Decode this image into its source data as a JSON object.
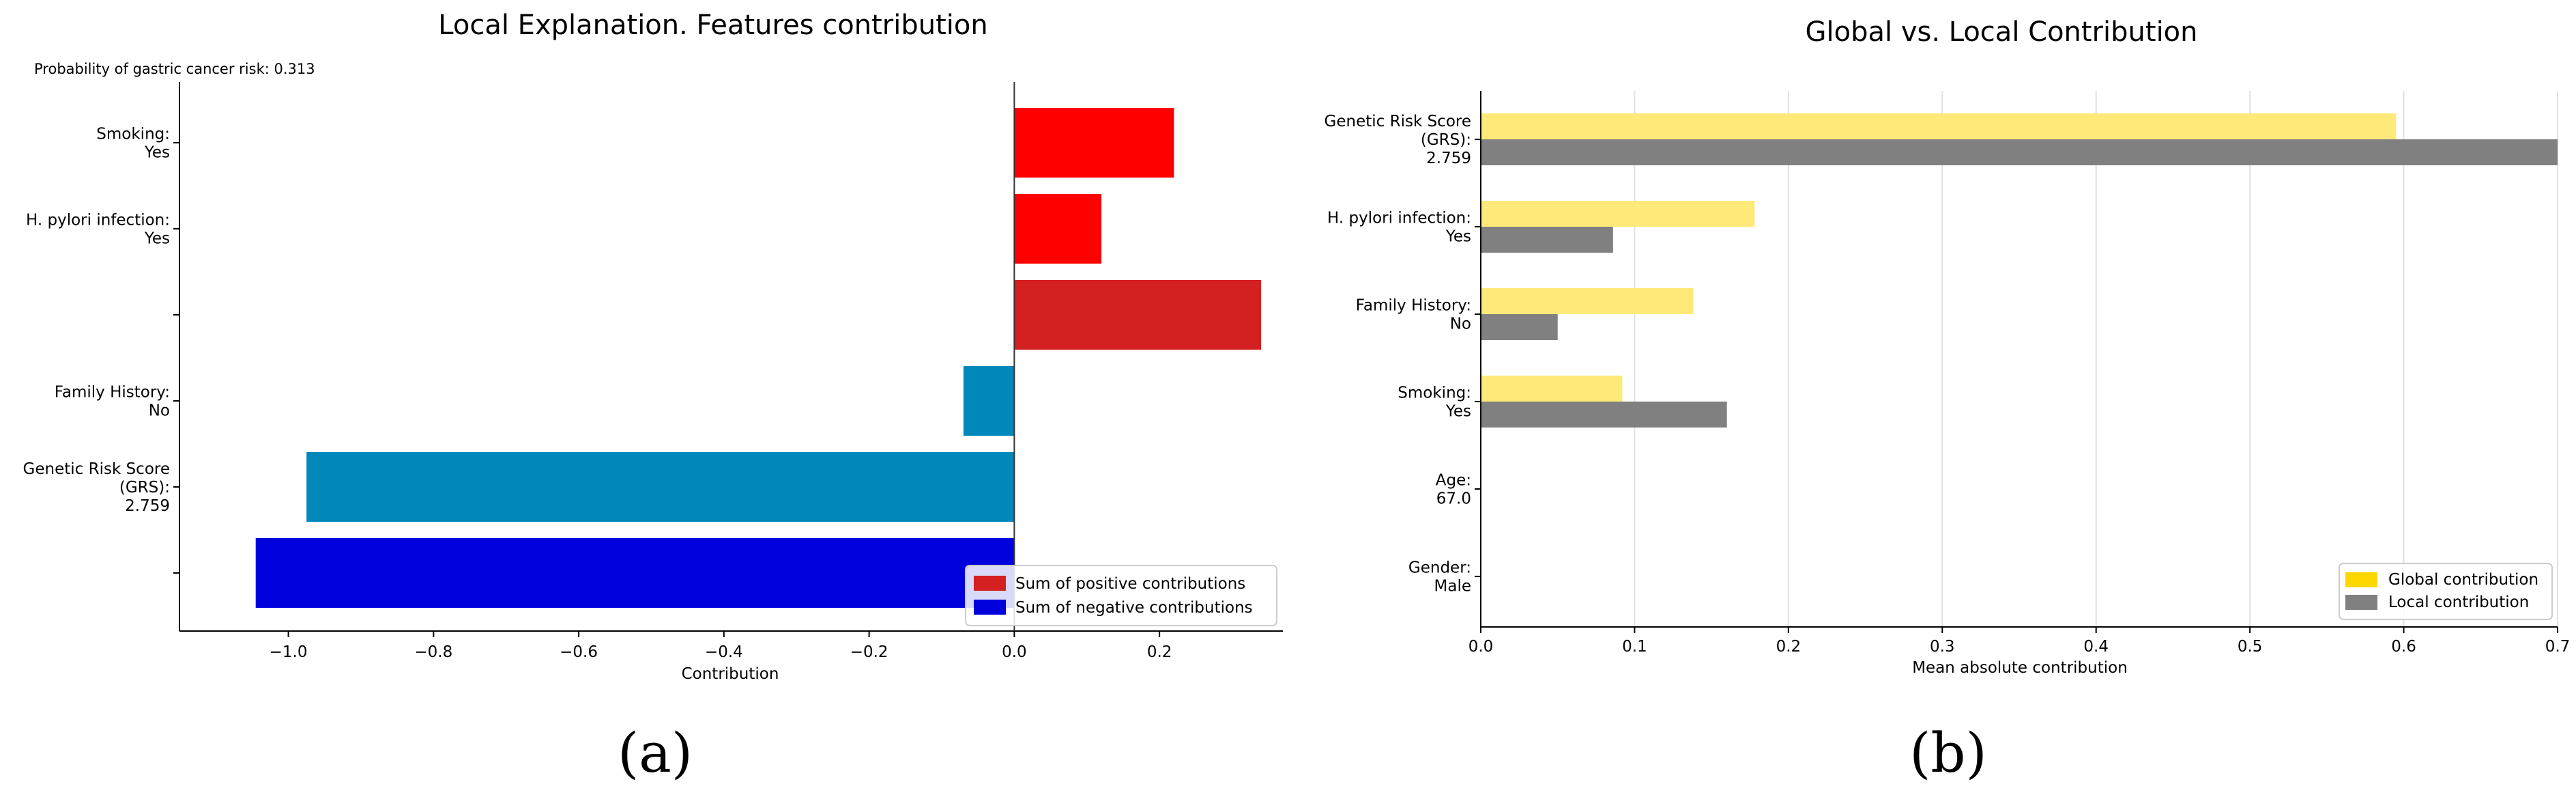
{
  "colors": {
    "pos_bar": "#ff0000",
    "neg_bar": "#0088bb",
    "pos_sum": "#d42020",
    "neg_sum": "#0000dd",
    "global": "#ffe978",
    "global_legend": "#ffd700",
    "local": "#808080",
    "grid": "#e0e0e0"
  },
  "chart_data": [
    {
      "type": "bar",
      "orientation": "horizontal",
      "title": "Local Explanation. Features contribution",
      "annotation": "Probability of gastric cancer risk: 0.313",
      "xlabel": "Contribution",
      "ylabel": "",
      "xlim": [
        -1.15,
        0.37
      ],
      "xticks": [
        -1.0,
        -0.8,
        -0.6,
        -0.4,
        -0.2,
        0.0,
        0.2
      ],
      "xtick_labels": [
        "−1.0",
        "−0.8",
        "−0.6",
        "−0.4",
        "−0.2",
        "0.0",
        "0.2"
      ],
      "grid": false,
      "bars": [
        {
          "label": [
            "Smoking:",
            "Yes"
          ],
          "value": 0.22,
          "kind": "positive"
        },
        {
          "label": [
            "H. pylori infection:",
            "Yes"
          ],
          "value": 0.12,
          "kind": "positive"
        },
        {
          "label": [],
          "value": 0.34,
          "kind": "pos_sum"
        },
        {
          "label": [
            "Family History:",
            "No"
          ],
          "value": -0.07,
          "kind": "negative"
        },
        {
          "label": [
            "Genetic Risk Score",
            "(GRS):",
            "2.759"
          ],
          "value": -0.975,
          "kind": "negative"
        },
        {
          "label": [],
          "value": -1.045,
          "kind": "neg_sum"
        }
      ],
      "legend": {
        "position": "lower-right",
        "entries": [
          {
            "label": "Sum of positive contributions",
            "kind": "pos_sum"
          },
          {
            "label": "Sum of negative contributions",
            "kind": "neg_sum"
          }
        ]
      },
      "panel_label": "(a)"
    },
    {
      "type": "bar",
      "orientation": "horizontal",
      "title": "Global vs. Local Contribution",
      "xlabel": "Mean absolute contribution",
      "ylabel": "",
      "xlim": [
        0.0,
        0.7
      ],
      "xticks": [
        0.0,
        0.1,
        0.2,
        0.3,
        0.4,
        0.5,
        0.6,
        0.7
      ],
      "xtick_labels": [
        "0.0",
        "0.1",
        "0.2",
        "0.3",
        "0.4",
        "0.5",
        "0.6",
        "0.7"
      ],
      "grid": true,
      "categories": [
        [
          "Genetic Risk Score",
          "(GRS):",
          "2.759"
        ],
        [
          "H. pylori infection:",
          "Yes"
        ],
        [
          "Family History:",
          "No"
        ],
        [
          "Smoking:",
          "Yes"
        ],
        [
          "Age:",
          "67.0"
        ],
        [
          "Gender:",
          "Male"
        ]
      ],
      "series": [
        {
          "name": "Global contribution",
          "values": [
            0.595,
            0.178,
            0.138,
            0.092,
            0.0,
            0.0
          ]
        },
        {
          "name": "Local contribution",
          "values": [
            0.7,
            0.086,
            0.05,
            0.16,
            0.0,
            0.0
          ]
        }
      ],
      "legend": {
        "position": "lower-right"
      },
      "panel_label": "(b)"
    }
  ]
}
